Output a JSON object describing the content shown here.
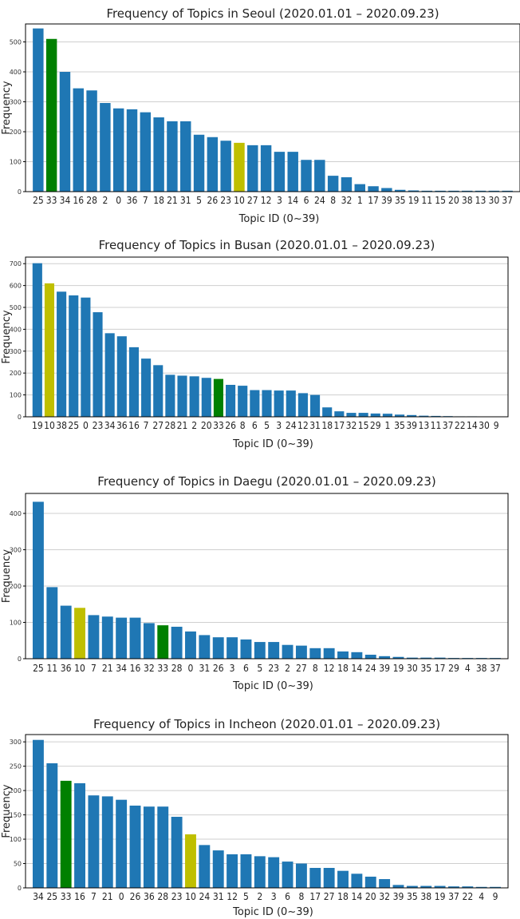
{
  "colors": {
    "default": "#1f77b4",
    "green": "#008000",
    "yellow": "#bfbf00"
  },
  "chart_data": [
    {
      "type": "bar",
      "title": "Frequency of Topics in Seoul (2020.01.01 – 2020.09.23)",
      "xlabel": "Topic ID (0~39)",
      "ylabel": "Frequency",
      "ylim": [
        0,
        560
      ],
      "yticks": [
        0,
        100,
        200,
        300,
        400,
        500
      ],
      "grid": true,
      "categories": [
        "25",
        "33",
        "34",
        "16",
        "28",
        "2",
        "0",
        "36",
        "7",
        "18",
        "21",
        "31",
        "5",
        "26",
        "23",
        "10",
        "27",
        "12",
        "3",
        "14",
        "6",
        "24",
        "8",
        "32",
        "1",
        "17",
        "39",
        "35",
        "19",
        "11",
        "15",
        "20",
        "38",
        "13",
        "30",
        "37"
      ],
      "values": [
        545,
        510,
        400,
        345,
        338,
        296,
        278,
        275,
        265,
        248,
        235,
        235,
        190,
        182,
        170,
        163,
        155,
        155,
        133,
        133,
        106,
        106,
        53,
        48,
        25,
        18,
        12,
        6,
        4,
        3,
        3,
        3,
        3,
        3,
        3,
        3
      ],
      "highlight": {
        "33": "green",
        "10": "yellow"
      }
    },
    {
      "type": "bar",
      "title": "Frequency of Topics in Busan (2020.01.01 – 2020.09.23)",
      "xlabel": "Topic ID (0~39)",
      "ylabel": "Frequency",
      "ylim": [
        0,
        730
      ],
      "yticks": [
        0,
        100,
        200,
        300,
        400,
        500,
        600,
        700
      ],
      "grid": true,
      "categories": [
        "19",
        "10",
        "38",
        "25",
        "0",
        "23",
        "34",
        "36",
        "16",
        "7",
        "27",
        "28",
        "21",
        "2",
        "20",
        "33",
        "26",
        "8",
        "6",
        "5",
        "3",
        "24",
        "12",
        "31",
        "18",
        "17",
        "32",
        "15",
        "29",
        "1",
        "35",
        "39",
        "13",
        "11",
        "37",
        "22",
        "14",
        "30",
        "9"
      ],
      "values": [
        702,
        610,
        572,
        555,
        545,
        478,
        382,
        368,
        318,
        266,
        236,
        192,
        188,
        185,
        178,
        173,
        146,
        142,
        122,
        122,
        120,
        120,
        108,
        100,
        43,
        25,
        18,
        18,
        15,
        14,
        10,
        8,
        5,
        4,
        3,
        2,
        2,
        1,
        1
      ],
      "highlight": {
        "10": "yellow",
        "33": "green"
      }
    },
    {
      "type": "bar",
      "title": "Frequency of Topics in Daegu (2020.01.01 – 2020.09.23)",
      "xlabel": "Topic ID (0~39)",
      "ylabel": "Frequency",
      "ylim": [
        0,
        455
      ],
      "yticks": [
        0,
        100,
        200,
        300,
        400
      ],
      "grid": true,
      "categories": [
        "25",
        "11",
        "36",
        "10",
        "7",
        "21",
        "34",
        "16",
        "32",
        "33",
        "28",
        "0",
        "31",
        "26",
        "3",
        "6",
        "5",
        "23",
        "2",
        "27",
        "8",
        "12",
        "18",
        "14",
        "24",
        "39",
        "19",
        "30",
        "35",
        "17",
        "29",
        "4",
        "38",
        "37"
      ],
      "values": [
        432,
        197,
        146,
        140,
        120,
        116,
        113,
        113,
        98,
        92,
        88,
        75,
        65,
        59,
        59,
        53,
        46,
        46,
        38,
        36,
        29,
        29,
        20,
        18,
        11,
        7,
        5,
        3,
        3,
        3,
        2,
        2,
        2,
        2
      ],
      "highlight": {
        "10": "yellow",
        "33": "green"
      }
    },
    {
      "type": "bar",
      "title": "Frequency of Topics in Incheon (2020.01.01 – 2020.09.23)",
      "xlabel": "Topic ID (0~39)",
      "ylabel": "Frequency",
      "ylim": [
        0,
        315
      ],
      "yticks": [
        0,
        50,
        100,
        150,
        200,
        250,
        300
      ],
      "grid": true,
      "categories": [
        "34",
        "25",
        "33",
        "16",
        "7",
        "21",
        "0",
        "26",
        "36",
        "28",
        "23",
        "10",
        "24",
        "31",
        "12",
        "5",
        "2",
        "3",
        "6",
        "8",
        "17",
        "27",
        "18",
        "14",
        "20",
        "32",
        "39",
        "35",
        "38",
        "19",
        "37",
        "22",
        "4",
        "9"
      ],
      "values": [
        304,
        256,
        220,
        215,
        190,
        188,
        181,
        169,
        167,
        167,
        146,
        110,
        88,
        77,
        69,
        69,
        65,
        63,
        54,
        50,
        41,
        41,
        35,
        29,
        23,
        18,
        6,
        4,
        4,
        4,
        3,
        3,
        2,
        2
      ],
      "highlight": {
        "33": "green",
        "10": "yellow"
      }
    }
  ]
}
